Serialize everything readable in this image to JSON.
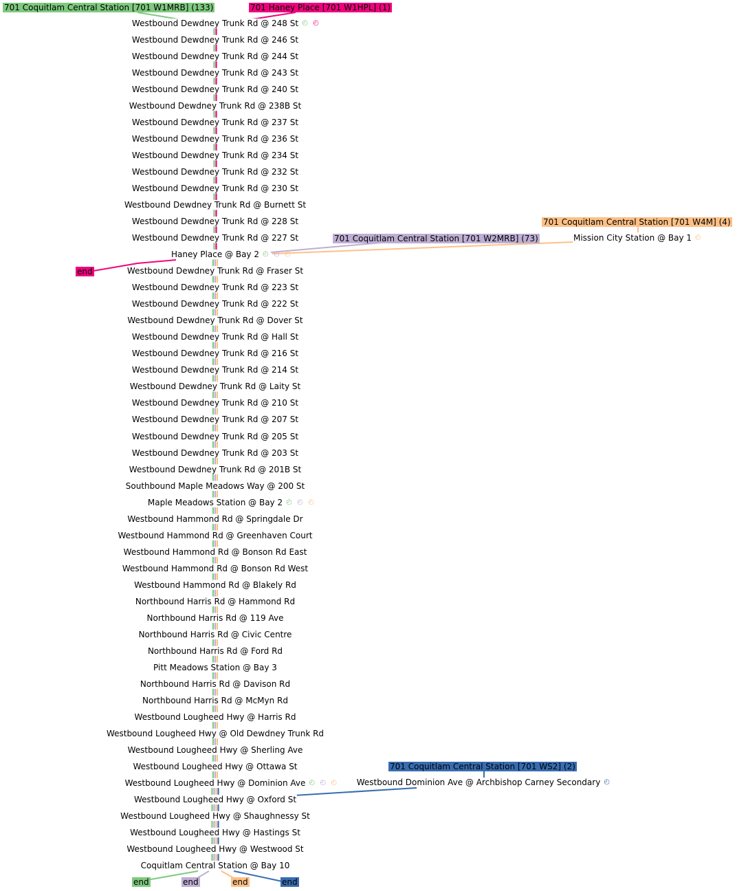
{
  "colors": {
    "w1mrb": "#7fc97f",
    "w1hpl": "#f0027f",
    "w2mrb": "#beaed4",
    "w4m": "#fdc086",
    "ws2": "#386cb0"
  },
  "routes": [
    {
      "key": "w1mrb",
      "label": "701 Coquitlam Central Station [701 W1MRB] (133)"
    },
    {
      "key": "w1hpl",
      "label": "701 Haney Place [701 W1HPL] (1)"
    },
    {
      "key": "w4m",
      "label": "701 Coquitlam Central Station [701 W4M] (4)"
    },
    {
      "key": "w2mrb",
      "label": "701 Coquitlam Central Station [701 W2MRB] (73)"
    },
    {
      "key": "ws2",
      "label": "701 Coquitlam Central Station [701 WS2] (2)"
    }
  ],
  "stops": [
    {
      "name": "Westbound Dewdney Trunk Rd @ 248 St",
      "clocks": [
        "w1mrb",
        "w1hpl"
      ]
    },
    {
      "name": "Westbound Dewdney Trunk Rd @ 246 St"
    },
    {
      "name": "Westbound Dewdney Trunk Rd @ 244 St"
    },
    {
      "name": "Westbound Dewdney Trunk Rd @ 243 St"
    },
    {
      "name": "Westbound Dewdney Trunk Rd @ 240 St"
    },
    {
      "name": "Westbound Dewdney Trunk Rd @ 238B St"
    },
    {
      "name": "Westbound Dewdney Trunk Rd @ 237 St"
    },
    {
      "name": "Westbound Dewdney Trunk Rd @ 236 St"
    },
    {
      "name": "Westbound Dewdney Trunk Rd @ 234 St"
    },
    {
      "name": "Westbound Dewdney Trunk Rd @ 232 St"
    },
    {
      "name": "Westbound Dewdney Trunk Rd @ 230 St"
    },
    {
      "name": "Westbound Dewdney Trunk Rd @ Burnett St"
    },
    {
      "name": "Westbound Dewdney Trunk Rd @ 228 St"
    },
    {
      "name": "Westbound Dewdney Trunk Rd @ 227 St"
    },
    {
      "name": "Haney Place @ Bay 2",
      "clocks": [
        "w1mrb",
        "w2mrb",
        "w4m"
      ]
    },
    {
      "name": "Westbound Dewdney Trunk Rd @ Fraser St"
    },
    {
      "name": "Westbound Dewdney Trunk Rd @ 223 St"
    },
    {
      "name": "Westbound Dewdney Trunk Rd @ 222 St"
    },
    {
      "name": "Westbound Dewdney Trunk Rd @ Dover St"
    },
    {
      "name": "Westbound Dewdney Trunk Rd @ Hall St"
    },
    {
      "name": "Westbound Dewdney Trunk Rd @ 216 St"
    },
    {
      "name": "Westbound Dewdney Trunk Rd @ 214 St"
    },
    {
      "name": "Westbound Dewdney Trunk Rd @ Laity St"
    },
    {
      "name": "Westbound Dewdney Trunk Rd @ 210 St"
    },
    {
      "name": "Westbound Dewdney Trunk Rd @ 207 St"
    },
    {
      "name": "Westbound Dewdney Trunk Rd @ 205 St"
    },
    {
      "name": "Westbound Dewdney  Trunk Rd @ 203 St"
    },
    {
      "name": "Westbound Dewdney Trunk Rd @ 201B St"
    },
    {
      "name": "Southbound Maple Meadows Way @ 200 St"
    },
    {
      "name": "Maple Meadows Station @ Bay 2",
      "clocks": [
        "w1mrb",
        "w2mrb",
        "w4m"
      ]
    },
    {
      "name": "Westbound Hammond Rd @ Springdale Dr"
    },
    {
      "name": "Westbound Hammond Rd @ Greenhaven Court"
    },
    {
      "name": "Westbound Hammond Rd @ Bonson Rd East"
    },
    {
      "name": "Westbound Hammond Rd @ Bonson Rd West"
    },
    {
      "name": "Westbound Hammond Rd @ Blakely Rd"
    },
    {
      "name": "Northbound Harris Rd @ Hammond Rd"
    },
    {
      "name": "Northbound Harris Rd @ 119 Ave"
    },
    {
      "name": "Northbound Harris Rd @ Civic Centre"
    },
    {
      "name": "Northbound Harris Rd @ Ford Rd"
    },
    {
      "name": "Pitt Meadows Station @ Bay 3"
    },
    {
      "name": "Northbound Harris Rd @ Davison Rd"
    },
    {
      "name": "Northbound Harris Rd @ McMyn Rd"
    },
    {
      "name": "Westbound Lougheed Hwy @ Harris Rd"
    },
    {
      "name": "Westbound Lougheed Hwy @ Old Dewdney Trunk Rd"
    },
    {
      "name": "Westbound Lougheed Hwy @ Sherling Ave"
    },
    {
      "name": "Westbound Lougheed Hwy @ Ottawa St"
    },
    {
      "name": "Westbound Lougheed Hwy @ Dominion Ave",
      "clocks": [
        "w1mrb",
        "w2mrb",
        "w4m"
      ]
    },
    {
      "name": "Westbound Lougheed Hwy @ Oxford St"
    },
    {
      "name": "Westbound Lougheed Hwy @ Shaughnessy St"
    },
    {
      "name": "Westbound Lougheed Hwy @ Hastings St"
    },
    {
      "name": "Westbound Lougheed Hwy @ Westwood St"
    },
    {
      "name": "Coquitlam Central Station @ Bay 10"
    }
  ],
  "side_stops": [
    {
      "name": "Mission City Station @ Bay 1",
      "clocks": [
        "w4m"
      ]
    },
    {
      "name": "Westbound Dominion Ave @ Archbishop Carney Secondary",
      "clocks": [
        "ws2"
      ]
    }
  ],
  "ends": [
    {
      "key": "w1hpl",
      "label": "end"
    },
    {
      "key": "w1mrb",
      "label": "end"
    },
    {
      "key": "w2mrb",
      "label": "end"
    },
    {
      "key": "w4m",
      "label": "end"
    },
    {
      "key": "ws2",
      "label": "end"
    }
  ],
  "icons": {
    "clock": "clock-icon"
  }
}
